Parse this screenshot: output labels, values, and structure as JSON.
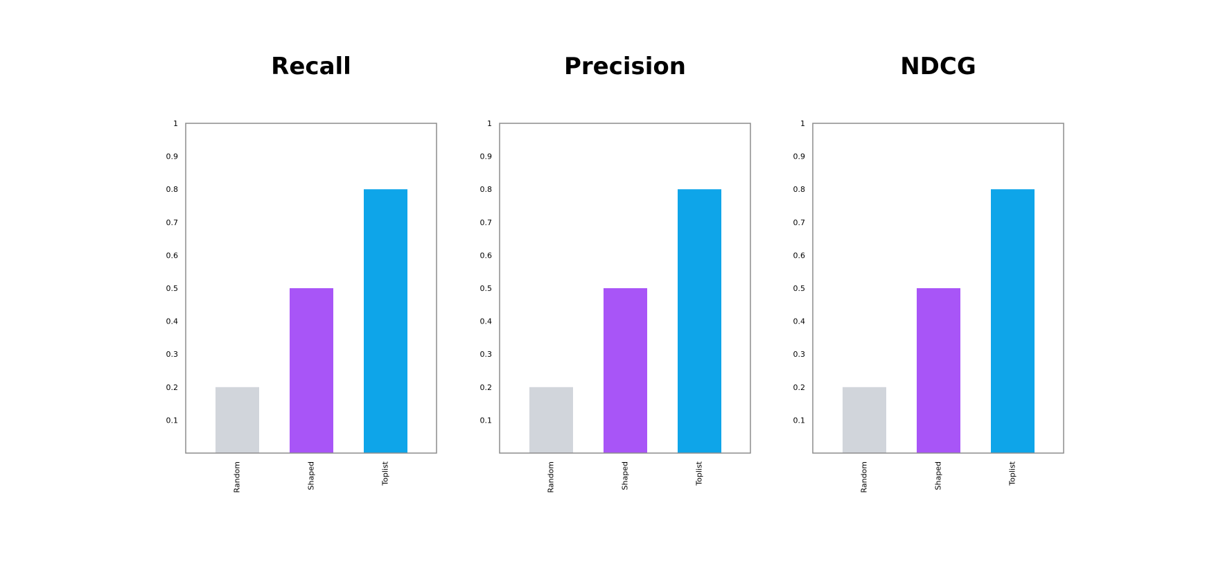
{
  "chart_data": [
    {
      "type": "bar",
      "title": "Recall",
      "categories": [
        "Random",
        "Shaped",
        "Toplist"
      ],
      "values": [
        0.2,
        0.5,
        0.8
      ],
      "colors": [
        "#d1d5db",
        "#a855f7",
        "#0ea5e9"
      ],
      "yticks": [
        "0.1",
        "0.2",
        "0.3",
        "0.4",
        "0.5",
        "0.6",
        "0.7",
        "0.8",
        "0.9",
        "1"
      ],
      "ylim": [
        0,
        1
      ],
      "xlabel": "",
      "ylabel": "",
      "grid": false,
      "legend": "none"
    },
    {
      "type": "bar",
      "title": "Precision",
      "categories": [
        "Random",
        "Shaped",
        "Toplist"
      ],
      "values": [
        0.2,
        0.5,
        0.8
      ],
      "colors": [
        "#d1d5db",
        "#a855f7",
        "#0ea5e9"
      ],
      "yticks": [
        "0.1",
        "0.2",
        "0.3",
        "0.4",
        "0.5",
        "0.6",
        "0.7",
        "0.8",
        "0.9",
        "1"
      ],
      "ylim": [
        0,
        1
      ],
      "xlabel": "",
      "ylabel": "",
      "grid": false,
      "legend": "none"
    },
    {
      "type": "bar",
      "title": "NDCG",
      "categories": [
        "Random",
        "Shaped",
        "Toplist"
      ],
      "values": [
        0.2,
        0.5,
        0.8
      ],
      "colors": [
        "#d1d5db",
        "#a855f7",
        "#0ea5e9"
      ],
      "yticks": [
        "0.1",
        "0.2",
        "0.3",
        "0.4",
        "0.5",
        "0.6",
        "0.7",
        "0.8",
        "0.9",
        "1"
      ],
      "ylim": [
        0,
        1
      ],
      "xlabel": "",
      "ylabel": "",
      "grid": false,
      "legend": "none"
    }
  ]
}
